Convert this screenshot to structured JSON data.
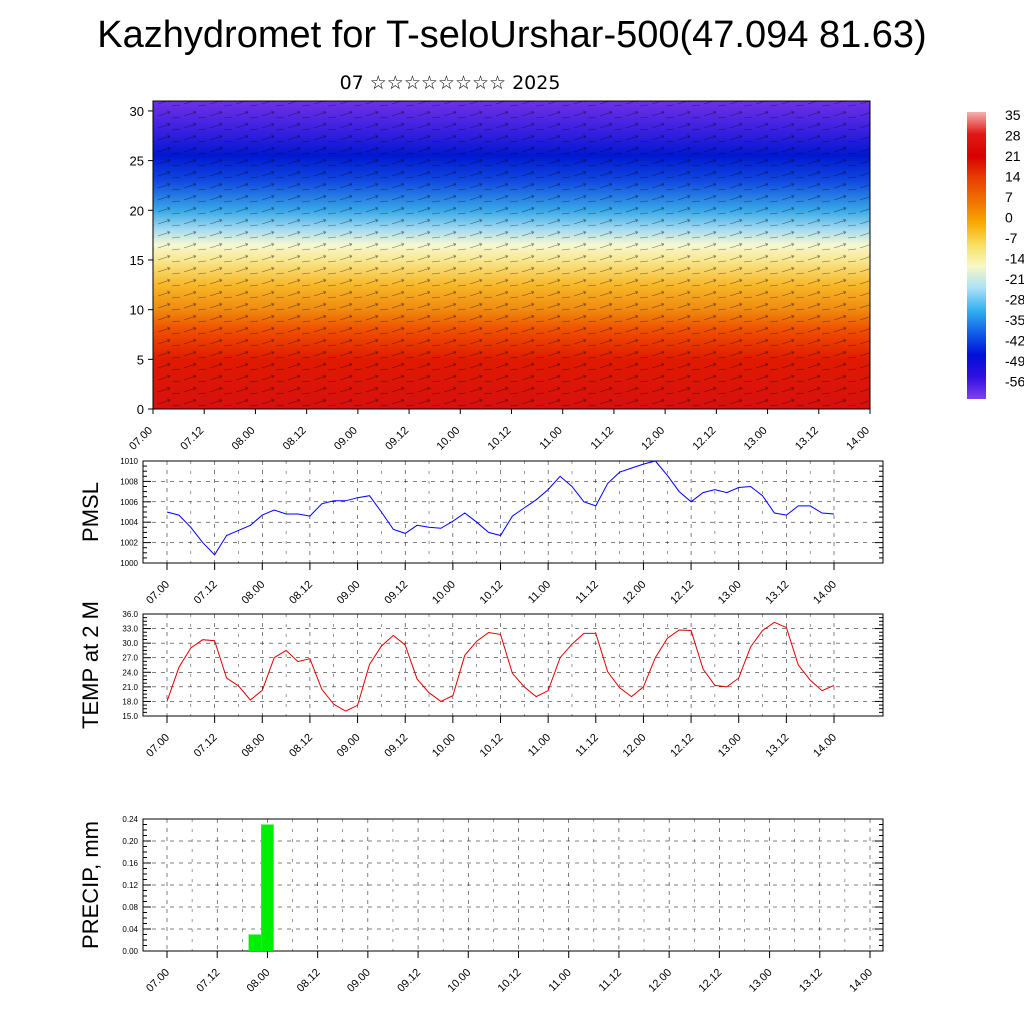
{
  "header": {
    "title": "Kazhydromet for T-seloUrshar-500(47.094 81.63)",
    "subtitle": "07 ☆☆☆☆☆☆☆☆ 2025"
  },
  "x_ticks": [
    "07.00",
    "07.12",
    "08.00",
    "08.12",
    "09.00",
    "09.12",
    "10.00",
    "10.12",
    "11.00",
    "11.12",
    "12.00",
    "12.12",
    "13.00",
    "13.12",
    "14.00"
  ],
  "chart_data": [
    {
      "type": "heatmap",
      "title": "",
      "y_ticks": [
        "0",
        "5",
        "10",
        "15",
        "20",
        "25",
        "30"
      ],
      "ylim": [
        0,
        31
      ],
      "colorbar": {
        "labels": [
          "35",
          "28",
          "21",
          "14",
          "7",
          "0",
          "-7",
          "-14",
          "-21",
          "-28",
          "-35",
          "-42",
          "-49",
          "-56"
        ],
        "colors": [
          "#f4b0b0",
          "#e01818",
          "#d80000",
          "#e84000",
          "#f07000",
          "#f8a800",
          "#f8e060",
          "#f8f8c8",
          "#a8e0f8",
          "#30b0f0",
          "#1060e8",
          "#0010d8",
          "#3010e0",
          "#8040f0"
        ]
      },
      "bands": [
        {
          "z": 0,
          "color": "#d81010"
        },
        {
          "z": 5,
          "color": "#e01a00"
        },
        {
          "z": 8,
          "color": "#f05000"
        },
        {
          "z": 10,
          "color": "#f08a10"
        },
        {
          "z": 12.5,
          "color": "#f8b828"
        },
        {
          "z": 15,
          "color": "#f8e890"
        },
        {
          "z": 16.5,
          "color": "#f8f8d0"
        },
        {
          "z": 18,
          "color": "#a8dcf0"
        },
        {
          "z": 20,
          "color": "#38a8e8"
        },
        {
          "z": 23,
          "color": "#1048e0"
        },
        {
          "z": 25.5,
          "color": "#0018d0"
        },
        {
          "z": 28,
          "color": "#3820e0"
        },
        {
          "z": 31,
          "color": "#7030e8"
        }
      ],
      "grid": false
    },
    {
      "type": "line",
      "ylabel": "PMSL",
      "y_ticks": [
        "1000",
        "1002",
        "1004",
        "1006",
        "1008",
        "1010"
      ],
      "ylim": [
        1000,
        1010
      ],
      "grid": true,
      "series": [
        {
          "color": "#0000ff",
          "values": [
            1005.0,
            1004.7,
            1003.5,
            1002.0,
            1000.8,
            1002.7,
            1003.2,
            1003.7,
            1004.7,
            1005.2,
            1004.8,
            1004.8,
            1004.6,
            1005.8,
            1006.1,
            1006.1,
            1006.4,
            1006.6,
            1005.0,
            1003.3,
            1002.9,
            1003.7,
            1003.5,
            1003.4,
            1004.1,
            1004.9,
            1004.0,
            1003.0,
            1002.7,
            1004.6,
            1005.4,
            1006.2,
            1007.2,
            1008.5,
            1007.5,
            1006.0,
            1005.6,
            1007.8,
            1008.9,
            1009.3,
            1009.7,
            1010.0,
            1008.6,
            1007.0,
            1006.0,
            1006.9,
            1007.2,
            1006.9,
            1007.4,
            1007.5,
            1006.6,
            1004.9,
            1004.7,
            1005.6,
            1005.6,
            1004.9,
            1004.8
          ]
        }
      ]
    },
    {
      "type": "line",
      "ylabel": "TEMP at 2 M",
      "y_ticks": [
        "15.0",
        "18.0",
        "21.0",
        "24.0",
        "27.0",
        "30.0",
        "33.0",
        "36.0"
      ],
      "ylim": [
        15,
        36
      ],
      "grid": true,
      "series": [
        {
          "color": "#e00000",
          "values": [
            18.0,
            25.0,
            29.0,
            30.7,
            30.5,
            22.8,
            21.2,
            18.3,
            20.3,
            27.0,
            28.5,
            26.2,
            26.8,
            20.5,
            17.4,
            16.0,
            17.2,
            25.6,
            29.4,
            31.6,
            29.6,
            22.6,
            19.8,
            18.0,
            19.2,
            27.5,
            30.4,
            32.2,
            31.8,
            23.8,
            21.0,
            19.0,
            20.2,
            27.0,
            29.8,
            32.0,
            32.0,
            24.1,
            20.8,
            19.0,
            21.0,
            27.0,
            31.0,
            32.7,
            32.6,
            24.7,
            21.3,
            21.0,
            22.8,
            29.2,
            32.6,
            34.3,
            33.2,
            25.5,
            22.4,
            20.2,
            21.3
          ]
        }
      ]
    },
    {
      "type": "bar",
      "ylabel": "PRECIP, mm",
      "y_ticks": [
        "0.00",
        "0.04",
        "0.08",
        "0.12",
        "0.16",
        "0.20",
        "0.24"
      ],
      "ylim": [
        0,
        0.24
      ],
      "grid": true,
      "bars": [
        {
          "x_hour": 21,
          "value": 0.03,
          "color": "#00ee00"
        },
        {
          "x_hour": 24,
          "value": 0.23,
          "color": "#00ee00"
        }
      ]
    }
  ]
}
